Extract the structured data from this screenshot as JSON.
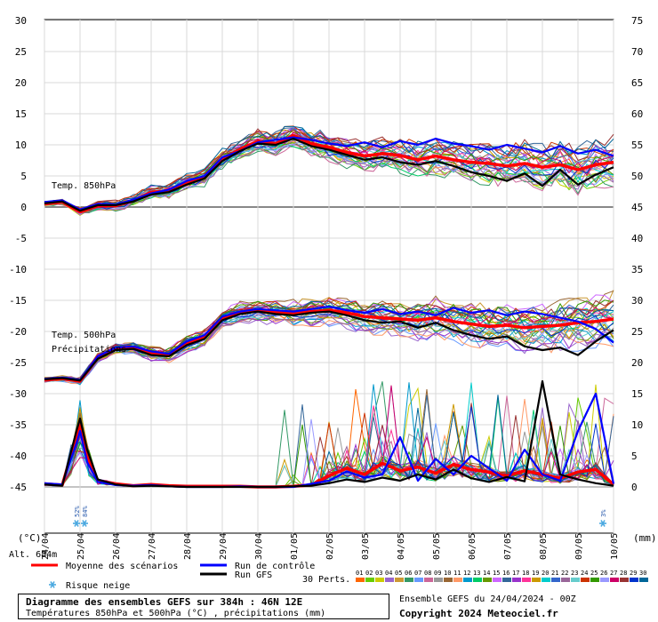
{
  "chart_data": {
    "type": "line",
    "title": "Diagramme des ensembles GEFS sur 384h : 46N 12E",
    "subtitle": "Températures 850hPa et 500hPa (°C) , précipitations (mm)",
    "run_info": "Ensemble GEFS du 24/04/2024 - 00Z",
    "copyright": "Copyright 2024 Meteociel.fr",
    "left_axis": {
      "unit": "(°C)",
      "ticks": [
        "30",
        "25",
        "20",
        "15",
        "10",
        "5",
        "0",
        "-5",
        "-10",
        "-15",
        "-20",
        "-25",
        "-30",
        "-35",
        "-40",
        "-45"
      ]
    },
    "right_axis": {
      "unit": "(mm)",
      "ticks": [
        "75",
        "70",
        "65",
        "60",
        "55",
        "50",
        "45",
        "40",
        "35",
        "30",
        "25",
        "20",
        "15",
        "10",
        "5",
        "0"
      ]
    },
    "x_ticks": [
      "24/04",
      "25/04",
      "26/04",
      "27/04",
      "28/04",
      "29/04",
      "30/04",
      "01/05",
      "02/05",
      "03/05",
      "04/05",
      "05/05",
      "06/05",
      "07/05",
      "08/05",
      "09/05",
      "10/05"
    ],
    "altitude_label": "Alt. 684m",
    "panel_labels": {
      "t850": "Temp. 850hPa",
      "t500": "Temp. 500hPa",
      "precip": "Précipitations"
    },
    "snow_risk": {
      "label": "Risque neige",
      "markers": [
        {
          "date": "25/04",
          "pct": "52%"
        },
        {
          "date": "25/04",
          "pct": "84%"
        },
        {
          "date": "10/05",
          "pct": "3%"
        }
      ]
    },
    "legend": {
      "mean": {
        "label": "Moyenne des scénarios",
        "color": "#ff0000"
      },
      "control": {
        "label": "Run de contrôle",
        "color": "#0000ff"
      },
      "gfs": {
        "label": "Run GFS",
        "color": "#000000"
      },
      "perturbations_label": "30 Perts.",
      "pert_numbers": [
        "01",
        "02",
        "03",
        "04",
        "05",
        "06",
        "07",
        "08",
        "09",
        "10",
        "11",
        "12",
        "13",
        "14",
        "15",
        "16",
        "17",
        "18",
        "19",
        "20",
        "21",
        "22",
        "23",
        "24",
        "25",
        "26",
        "27",
        "28",
        "29",
        "30"
      ],
      "pert_colors": [
        "#ff6600",
        "#66cc00",
        "#cccc00",
        "#9966cc",
        "#cc9933",
        "#339966",
        "#6699ff",
        "#cc6699",
        "#999999",
        "#996633",
        "#ff9966",
        "#0099cc",
        "#00cc66",
        "#669900",
        "#cc66ff",
        "#336699",
        "#9933cc",
        "#ff3399",
        "#cc9900",
        "#00cccc",
        "#3366cc",
        "#996699",
        "#66cccc",
        "#cc3300",
        "#339900",
        "#9999ff",
        "#cc0066",
        "#993333",
        "#0033cc",
        "#006699"
      ]
    },
    "series": [
      {
        "name": "Moyenne des scénarios",
        "level": "t850",
        "x_day": [
          0,
          0.5,
          1,
          1.5,
          2,
          2.5,
          3,
          3.5,
          4,
          4.5,
          5,
          5.5,
          6,
          6.5,
          7,
          7.5,
          8,
          8.5,
          9,
          9.5,
          10,
          10.5,
          11,
          11.5,
          12,
          12.5,
          13,
          13.5,
          14,
          14.5,
          15,
          15.5,
          16
        ],
        "values": [
          0.5,
          0.8,
          -0.8,
          0.2,
          0.2,
          1.0,
          2.4,
          2.6,
          4.0,
          4.8,
          7.8,
          9.3,
          10.6,
          10.2,
          11.5,
          10.2,
          9.6,
          8.8,
          8.2,
          8.6,
          8.3,
          7.6,
          8.2,
          7.6,
          7.2,
          7.0,
          6.6,
          7.0,
          6.4,
          6.8,
          6.0,
          6.8,
          7.2
        ]
      },
      {
        "name": "Run de contrôle",
        "level": "t850",
        "x_day": [
          0,
          0.5,
          1,
          1.5,
          2,
          2.5,
          3,
          3.5,
          4,
          4.5,
          5,
          5.5,
          6,
          6.5,
          7,
          7.5,
          8,
          8.5,
          9,
          9.5,
          10,
          10.5,
          11,
          11.5,
          12,
          12.5,
          13,
          13.5,
          14,
          14.5,
          15,
          15.5,
          16
        ],
        "values": [
          0.8,
          1.1,
          -0.4,
          0.5,
          0.4,
          1.2,
          2.2,
          2.8,
          4.2,
          5.0,
          8.0,
          9.0,
          10.4,
          10.8,
          11.2,
          10.8,
          10.2,
          9.8,
          10.4,
          9.6,
          10.6,
          10.0,
          11.0,
          10.2,
          9.8,
          9.2,
          10.0,
          9.4,
          8.8,
          9.8,
          8.6,
          9.2,
          8.2
        ]
      },
      {
        "name": "Run GFS",
        "level": "t850",
        "x_day": [
          0,
          0.5,
          1,
          1.5,
          2,
          2.5,
          3,
          3.5,
          4,
          4.5,
          5,
          5.5,
          6,
          6.5,
          7,
          7.5,
          8,
          8.5,
          9,
          9.5,
          10,
          10.5,
          11,
          11.5,
          12,
          12.5,
          13,
          13.5,
          14,
          14.5,
          15,
          15.5,
          16
        ],
        "values": [
          0.6,
          0.9,
          -0.6,
          0.3,
          0.3,
          0.9,
          2.0,
          2.4,
          3.6,
          4.6,
          7.4,
          9.0,
          10.2,
          10.0,
          11.0,
          9.8,
          9.2,
          8.4,
          7.6,
          8.0,
          7.2,
          6.8,
          7.4,
          6.6,
          5.6,
          5.0,
          4.2,
          5.4,
          3.4,
          6.0,
          3.6,
          5.2,
          6.4
        ]
      },
      {
        "name": "Moyenne des scénarios",
        "level": "t500",
        "x_day": [
          0,
          0.5,
          1,
          1.5,
          2,
          2.5,
          3,
          3.5,
          4,
          4.5,
          5,
          5.5,
          6,
          6.5,
          7,
          7.5,
          8,
          8.5,
          9,
          9.5,
          10,
          10.5,
          11,
          11.5,
          12,
          12.5,
          13,
          13.5,
          14,
          14.5,
          15,
          15.5,
          16
        ],
        "values": [
          -27.8,
          -27.6,
          -28.0,
          -24.2,
          -22.8,
          -22.6,
          -23.6,
          -23.8,
          -22.0,
          -21.0,
          -18.0,
          -17.0,
          -16.6,
          -16.9,
          -17.2,
          -16.8,
          -16.6,
          -17.0,
          -17.6,
          -17.8,
          -18.0,
          -18.2,
          -17.8,
          -18.4,
          -18.8,
          -19.2,
          -19.0,
          -19.4,
          -19.2,
          -19.0,
          -18.6,
          -18.4,
          -18.0
        ]
      },
      {
        "name": "Run de contrôle",
        "level": "t500",
        "x_day": [
          0,
          0.5,
          1,
          1.5,
          2,
          2.5,
          3,
          3.5,
          4,
          4.5,
          5,
          5.5,
          6,
          6.5,
          7,
          7.5,
          8,
          8.5,
          9,
          9.5,
          10,
          10.5,
          11,
          11.5,
          12,
          12.5,
          13,
          13.5,
          14,
          14.5,
          15,
          15.5,
          16
        ],
        "values": [
          -27.6,
          -27.4,
          -27.8,
          -24.0,
          -22.6,
          -22.4,
          -23.2,
          -23.6,
          -21.6,
          -20.6,
          -17.6,
          -16.8,
          -16.4,
          -16.6,
          -16.8,
          -16.4,
          -16.0,
          -16.6,
          -17.0,
          -16.4,
          -17.2,
          -16.8,
          -17.4,
          -16.2,
          -17.0,
          -16.6,
          -17.4,
          -16.8,
          -17.2,
          -17.8,
          -18.4,
          -19.6,
          -21.8
        ]
      },
      {
        "name": "Run GFS",
        "level": "t500",
        "x_day": [
          0,
          0.5,
          1,
          1.5,
          2,
          2.5,
          3,
          3.5,
          4,
          4.5,
          5,
          5.5,
          6,
          6.5,
          7,
          7.5,
          8,
          8.5,
          9,
          9.5,
          10,
          10.5,
          11,
          11.5,
          12,
          12.5,
          13,
          13.5,
          14,
          14.5,
          15,
          15.5,
          16
        ],
        "values": [
          -27.7,
          -27.5,
          -27.9,
          -24.4,
          -23.0,
          -22.8,
          -23.8,
          -24.0,
          -22.2,
          -21.2,
          -18.2,
          -17.2,
          -16.8,
          -17.2,
          -17.4,
          -17.0,
          -16.8,
          -17.4,
          -18.2,
          -18.6,
          -18.4,
          -19.4,
          -18.6,
          -19.8,
          -20.6,
          -21.2,
          -20.8,
          -22.4,
          -23.0,
          -22.6,
          -23.8,
          -21.6,
          -19.8
        ]
      },
      {
        "name": "Moyenne des scénarios",
        "level": "precip_mm",
        "x_day": [
          0,
          0.5,
          0.9,
          1,
          1.2,
          1.5,
          2,
          2.5,
          3,
          3.5,
          4,
          4.5,
          5,
          5.5,
          6,
          6.5,
          7,
          7.5,
          8,
          8.5,
          9,
          9.5,
          10,
          10.5,
          11,
          11.5,
          12,
          12.5,
          13,
          13.5,
          14,
          14.5,
          15,
          15.5,
          16
        ],
        "values": [
          0.5,
          0.3,
          8.0,
          10.0,
          5.0,
          1.0,
          0.5,
          0.2,
          0.4,
          0.2,
          0.1,
          0.1,
          0.1,
          0.1,
          0.0,
          0.0,
          0.1,
          0.3,
          1.8,
          3.0,
          2.0,
          3.8,
          2.6,
          3.2,
          2.2,
          3.6,
          2.8,
          2.4,
          1.8,
          2.6,
          2.0,
          1.4,
          2.4,
          2.8,
          0.4
        ]
      },
      {
        "name": "Run de contrôle",
        "level": "precip_mm",
        "x_day": [
          0,
          0.5,
          0.9,
          1,
          1.2,
          1.5,
          2,
          2.5,
          3,
          3.5,
          4,
          4.5,
          5,
          5.5,
          6,
          6.5,
          7,
          7.5,
          8,
          8.5,
          9,
          9.5,
          10,
          10.5,
          11,
          11.5,
          12,
          12.5,
          13,
          13.5,
          14,
          14.5,
          15,
          15.5,
          16
        ],
        "values": [
          0.6,
          0.4,
          7.0,
          9.0,
          4.0,
          0.8,
          0.3,
          0.2,
          0.3,
          0.1,
          0.0,
          0.0,
          0.0,
          0.1,
          0.0,
          0.0,
          0.0,
          0.5,
          1.0,
          2.5,
          1.5,
          2.0,
          8.0,
          1.0,
          4.5,
          2.0,
          5.0,
          3.0,
          1.0,
          6.0,
          2.0,
          1.0,
          9.0,
          15.0,
          0.5
        ]
      },
      {
        "name": "Run GFS",
        "level": "precip_mm",
        "x_day": [
          0,
          0.5,
          0.9,
          1,
          1.2,
          1.5,
          2,
          2.5,
          3,
          3.5,
          4,
          4.5,
          5,
          5.5,
          6,
          6.5,
          7,
          7.5,
          8,
          8.5,
          9,
          9.5,
          10,
          10.5,
          11,
          11.5,
          12,
          12.5,
          13,
          13.5,
          14,
          14.5,
          15,
          15.5,
          16
        ],
        "values": [
          0.4,
          0.2,
          9.0,
          11.0,
          6.0,
          1.2,
          0.4,
          0.1,
          0.2,
          0.1,
          0.0,
          0.0,
          0.0,
          0.0,
          0.0,
          0.0,
          0.1,
          0.2,
          0.6,
          1.2,
          0.8,
          1.5,
          1.0,
          2.0,
          1.2,
          2.8,
          1.4,
          0.8,
          1.6,
          0.9,
          17.0,
          2.0,
          1.2,
          0.6,
          0.2
        ]
      }
    ]
  }
}
